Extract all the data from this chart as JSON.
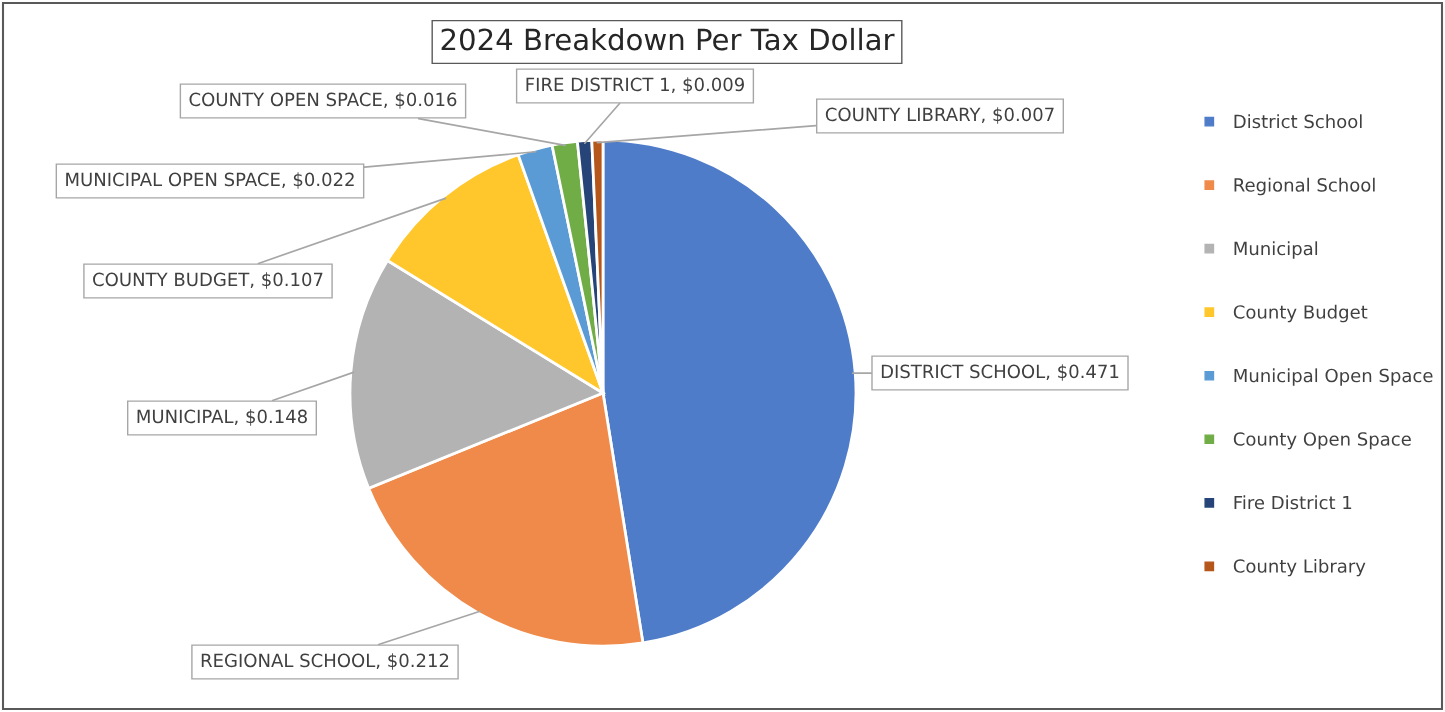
{
  "chart_data": {
    "type": "pie",
    "title": "2024 Breakdown Per Tax Dollar",
    "categories": [
      "District School",
      "Regional School",
      "Municipal",
      "County Budget",
      "Municipal Open Space",
      "County Open Space",
      "Fire District 1",
      "County Library"
    ],
    "values": [
      0.471,
      0.212,
      0.148,
      0.107,
      0.022,
      0.016,
      0.009,
      0.007
    ],
    "value_labels": [
      "DISTRICT SCHOOL, $0.471",
      "REGIONAL SCHOOL, $0.212",
      "MUNICIPAL, $0.148",
      "COUNTY BUDGET, $0.107",
      "MUNICIPAL OPEN SPACE, $0.022",
      "COUNTY OPEN SPACE, $0.016",
      "FIRE DISTRICT 1, $0.009",
      "COUNTY LIBRARY, $0.007"
    ],
    "colors": [
      "#4f7cc9",
      "#ef8a4a",
      "#b3b3b3",
      "#ffc72c",
      "#5b9bd5",
      "#70ad47",
      "#264478",
      "#b5561b"
    ],
    "legend": "right"
  }
}
